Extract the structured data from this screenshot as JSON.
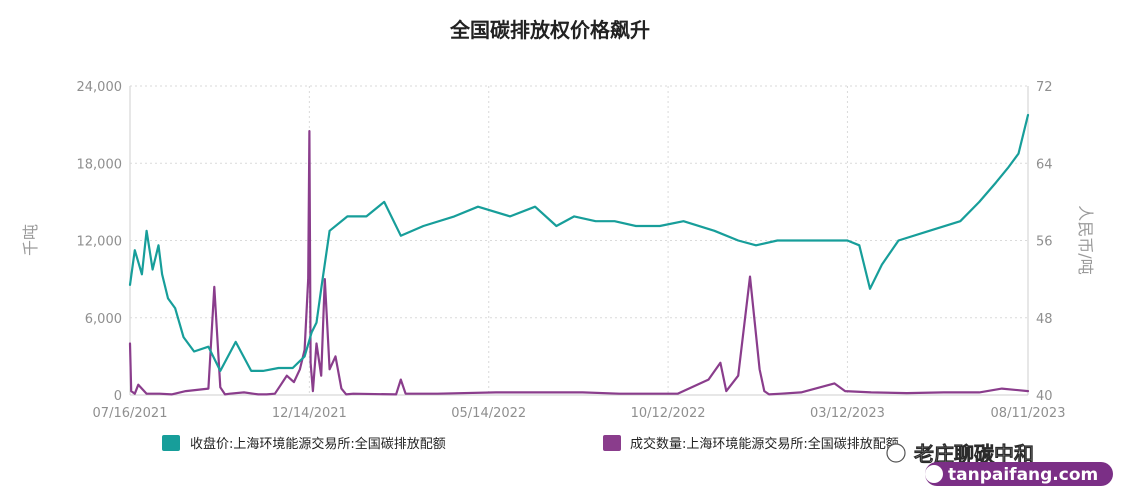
{
  "chart_data": {
    "type": "line",
    "title": "全国碳排放权价格飙升",
    "y_left_label": "千吨",
    "y_right_label": "人民币/吨",
    "y_left_ticks": [
      "24,000",
      "18,000",
      "12,000",
      "6,000",
      "0"
    ],
    "y_right_ticks": [
      "72",
      "64",
      "56",
      "48",
      "40"
    ],
    "x_tick_labels": [
      "07/16/2021",
      "12/14/2021",
      "05/14/2022",
      "10/12/2022",
      "03/12/2023",
      "08/11/2023"
    ],
    "x_range": [
      "07/16/2021",
      "08/11/2023"
    ],
    "y_left_range": [
      0,
      24000
    ],
    "y_right_range": [
      40,
      72
    ],
    "grid": true,
    "legend_position": "bottom",
    "series": [
      {
        "name": "收盘价:上海环境能源交易所:全国碳排放配额",
        "axis": "right",
        "color": "#179e9a",
        "dates": [
          "2021-07-16",
          "2021-07-20",
          "2021-07-26",
          "2021-07-30",
          "2021-08-04",
          "2021-08-09",
          "2021-08-12",
          "2021-08-17",
          "2021-08-23",
          "2021-08-30",
          "2021-09-08",
          "2021-09-20",
          "2021-09-30",
          "2021-10-13",
          "2021-10-26",
          "2021-11-05",
          "2021-11-18",
          "2021-11-30",
          "2021-12-10",
          "2021-12-16",
          "2021-12-20",
          "2021-12-24",
          "2021-12-31",
          "2022-01-15",
          "2022-01-31",
          "2022-02-15",
          "2022-03-01",
          "2022-03-20",
          "2022-04-15",
          "2022-05-05",
          "2022-06-01",
          "2022-06-22",
          "2022-07-10",
          "2022-07-25",
          "2022-08-12",
          "2022-08-28",
          "2022-09-15",
          "2022-10-05",
          "2022-10-25",
          "2022-11-20",
          "2022-12-10",
          "2022-12-25",
          "2023-01-12",
          "2023-01-31",
          "2023-02-20",
          "2023-03-12",
          "2023-03-22",
          "2023-03-31",
          "2023-04-10",
          "2023-04-24",
          "2023-05-20",
          "2023-06-15",
          "2023-07-01",
          "2023-07-15",
          "2023-07-25",
          "2023-08-03",
          "2023-08-11"
        ],
        "values": [
          51.4,
          55.0,
          52.5,
          57.0,
          53.0,
          55.5,
          52.5,
          50.0,
          49.0,
          46.0,
          44.5,
          45.0,
          42.5,
          45.5,
          42.5,
          42.5,
          42.8,
          42.8,
          44.0,
          46.5,
          47.5,
          51.0,
          57.0,
          58.5,
          58.5,
          60.0,
          56.5,
          57.5,
          58.5,
          59.5,
          58.5,
          59.5,
          57.5,
          58.5,
          58.0,
          58.0,
          57.5,
          57.5,
          58.0,
          57.0,
          56.0,
          55.5,
          56.0,
          56.0,
          56.0,
          56.0,
          55.5,
          51.0,
          53.5,
          56.0,
          57.0,
          58.0,
          60.0,
          62.0,
          63.5,
          65.0,
          69.0
        ]
      },
      {
        "name": "成交数量:上海环境能源交易所:全国碳排放配额",
        "axis": "left",
        "color": "#8a3d8c",
        "dates": [
          "2021-07-16",
          "2021-07-17",
          "2021-07-20",
          "2021-07-23",
          "2021-07-30",
          "2021-08-10",
          "2021-08-20",
          "2021-09-01",
          "2021-09-20",
          "2021-09-25",
          "2021-09-30",
          "2021-10-04",
          "2021-10-08",
          "2021-10-20",
          "2021-11-01",
          "2021-11-08",
          "2021-11-15",
          "2021-11-20",
          "2021-11-25",
          "2021-12-01",
          "2021-12-06",
          "2021-12-10",
          "2021-12-13",
          "2021-12-14",
          "2021-12-15",
          "2021-12-17",
          "2021-12-20",
          "2021-12-24",
          "2021-12-27",
          "2021-12-31",
          "2022-01-05",
          "2022-01-10",
          "2022-01-14",
          "2022-01-20",
          "2022-02-25",
          "2022-03-01",
          "2022-03-05",
          "2022-04-01",
          "2022-05-20",
          "2022-06-20",
          "2022-08-01",
          "2022-09-01",
          "2022-10-20",
          "2022-11-15",
          "2022-11-25",
          "2022-11-30",
          "2022-12-10",
          "2022-12-20",
          "2022-12-28",
          "2023-01-01",
          "2023-01-05",
          "2023-01-15",
          "2023-02-01",
          "2023-03-01",
          "2023-03-10",
          "2023-04-01",
          "2023-05-01",
          "2023-06-01",
          "2023-07-01",
          "2023-07-20",
          "2023-08-11"
        ],
        "values": [
          4000,
          300,
          100,
          800,
          100,
          100,
          50,
          300,
          500,
          8400,
          600,
          50,
          100,
          200,
          50,
          50,
          100,
          800,
          1500,
          1000,
          2000,
          3500,
          9000,
          20500,
          2500,
          300,
          4000,
          1500,
          9000,
          2000,
          3000,
          500,
          50,
          100,
          50,
          1200,
          100,
          100,
          200,
          200,
          200,
          100,
          100,
          1200,
          2500,
          300,
          1500,
          9200,
          2000,
          300,
          50,
          100,
          200,
          900,
          300,
          200,
          150,
          200,
          200,
          500,
          300
        ]
      }
    ]
  },
  "watermark": {
    "text": "老庄聊碳中和",
    "url": "tanpaifang.com"
  }
}
